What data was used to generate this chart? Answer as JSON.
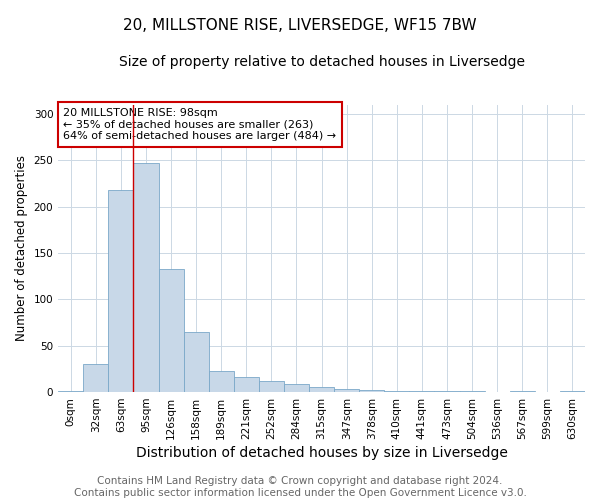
{
  "title": "20, MILLSTONE RISE, LIVERSEDGE, WF15 7BW",
  "subtitle": "Size of property relative to detached houses in Liversedge",
  "xlabel": "Distribution of detached houses by size in Liversedge",
  "ylabel": "Number of detached properties",
  "categories": [
    "0sqm",
    "32sqm",
    "63sqm",
    "95sqm",
    "126sqm",
    "158sqm",
    "189sqm",
    "221sqm",
    "252sqm",
    "284sqm",
    "315sqm",
    "347sqm",
    "378sqm",
    "410sqm",
    "441sqm",
    "473sqm",
    "504sqm",
    "536sqm",
    "567sqm",
    "599sqm",
    "630sqm"
  ],
  "values": [
    1,
    30,
    218,
    247,
    133,
    65,
    23,
    16,
    12,
    9,
    6,
    3,
    2,
    1,
    1,
    1,
    1,
    0,
    1,
    0,
    1
  ],
  "bar_color": "#c8d8e8",
  "bar_edge_color": "#7aa8c8",
  "vline_x_index": 3,
  "vline_color": "#cc0000",
  "annotation_box_text": "20 MILLSTONE RISE: 98sqm\n← 35% of detached houses are smaller (263)\n64% of semi-detached houses are larger (484) →",
  "annotation_text_color": "#000000",
  "ylim": [
    0,
    310
  ],
  "yticks": [
    0,
    50,
    100,
    150,
    200,
    250,
    300
  ],
  "footer_text": "Contains HM Land Registry data © Crown copyright and database right 2024.\nContains public sector information licensed under the Open Government Licence v3.0.",
  "background_color": "#ffffff",
  "grid_color": "#ccd8e4",
  "title_fontsize": 11,
  "subtitle_fontsize": 10,
  "xlabel_fontsize": 10,
  "ylabel_fontsize": 8.5,
  "tick_fontsize": 7.5,
  "annotation_fontsize": 8,
  "footer_fontsize": 7.5
}
